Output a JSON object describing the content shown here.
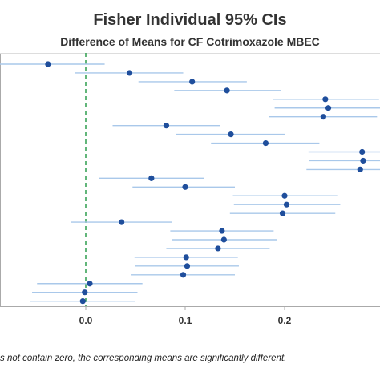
{
  "chart_data": {
    "type": "interval",
    "title": "Fisher Individual 95% CIs",
    "subtitle": "Difference of Means for CF Cotrimoxazole MBEC",
    "xlabel": "",
    "ylabel": "",
    "xlim": [
      -0.085,
      0.29
    ],
    "xticks": [
      {
        "value": 0.0,
        "label": "0.0"
      },
      {
        "value": 0.1,
        "label": "0.1"
      },
      {
        "value": 0.2,
        "label": "0.2"
      }
    ],
    "reference_line": {
      "value": 0.0,
      "style": "dashed",
      "color": "#2e9e4f"
    },
    "grid": false,
    "intervals": [
      {
        "mean": -0.038,
        "lower": -0.095,
        "upper": 0.019
      },
      {
        "mean": 0.044,
        "lower": -0.011,
        "upper": 0.098
      },
      {
        "mean": 0.107,
        "lower": 0.053,
        "upper": 0.162
      },
      {
        "mean": 0.142,
        "lower": 0.089,
        "upper": 0.196
      },
      {
        "mean": 0.241,
        "lower": 0.188,
        "upper": 0.295
      },
      {
        "mean": 0.244,
        "lower": 0.19,
        "upper": 0.298
      },
      {
        "mean": 0.239,
        "lower": 0.184,
        "upper": 0.293
      },
      {
        "mean": 0.081,
        "lower": 0.027,
        "upper": 0.135
      },
      {
        "mean": 0.146,
        "lower": 0.091,
        "upper": 0.2
      },
      {
        "mean": 0.181,
        "lower": 0.126,
        "upper": 0.235
      },
      {
        "mean": 0.278,
        "lower": 0.224,
        "upper": 0.332
      },
      {
        "mean": 0.279,
        "lower": 0.225,
        "upper": 0.333
      },
      {
        "mean": 0.276,
        "lower": 0.222,
        "upper": 0.33
      },
      {
        "mean": 0.066,
        "lower": 0.013,
        "upper": 0.119
      },
      {
        "mean": 0.1,
        "lower": 0.047,
        "upper": 0.15
      },
      {
        "mean": 0.2,
        "lower": 0.148,
        "upper": 0.253
      },
      {
        "mean": 0.202,
        "lower": 0.149,
        "upper": 0.256
      },
      {
        "mean": 0.198,
        "lower": 0.145,
        "upper": 0.251
      },
      {
        "mean": 0.036,
        "lower": -0.015,
        "upper": 0.087
      },
      {
        "mean": 0.137,
        "lower": 0.085,
        "upper": 0.189
      },
      {
        "mean": 0.139,
        "lower": 0.087,
        "upper": 0.192
      },
      {
        "mean": 0.133,
        "lower": 0.081,
        "upper": 0.185
      },
      {
        "mean": 0.101,
        "lower": 0.049,
        "upper": 0.153
      },
      {
        "mean": 0.102,
        "lower": 0.05,
        "upper": 0.154
      },
      {
        "mean": 0.098,
        "lower": 0.046,
        "upper": 0.15
      },
      {
        "mean": 0.004,
        "lower": -0.049,
        "upper": 0.057
      },
      {
        "mean": -0.001,
        "lower": -0.054,
        "upper": 0.052
      },
      {
        "mean": -0.003,
        "lower": -0.056,
        "upper": 0.05
      }
    ],
    "colors": {
      "marker": "#1f4e9c",
      "interval": "#a9c8ea",
      "axis": "#aaaaaa",
      "reference": "#2e9e4f"
    }
  },
  "footnote": "s not contain zero, the corresponding means are significantly different."
}
